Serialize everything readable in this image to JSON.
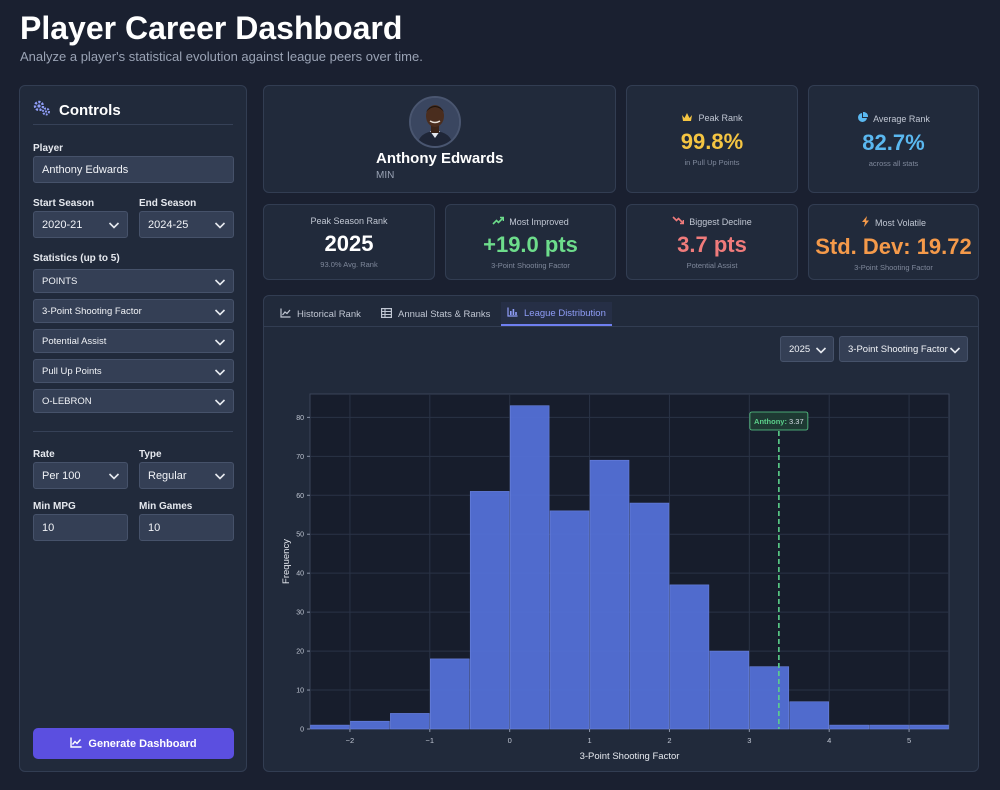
{
  "header": {
    "title": "Player Career Dashboard",
    "subtitle": "Analyze a player's statistical evolution against league peers over time."
  },
  "controls": {
    "title": "Controls",
    "player_label": "Player",
    "player_value": "Anthony Edwards",
    "start_season_label": "Start Season",
    "start_season_value": "2020-21",
    "end_season_label": "End Season",
    "end_season_value": "2024-25",
    "statistics_label": "Statistics (up to 5)",
    "statistics": [
      "POINTS",
      "3-Point Shooting Factor",
      "Potential Assist",
      "Pull Up Points",
      "O-LEBRON"
    ],
    "rate_label": "Rate",
    "rate_value": "Per 100",
    "type_label": "Type",
    "type_value": "Regular",
    "min_mpg_label": "Min MPG",
    "min_mpg_value": "10",
    "min_games_label": "Min Games",
    "min_games_value": "10",
    "generate_label": "Generate Dashboard"
  },
  "player": {
    "name": "Anthony Edwards",
    "team": "MIN"
  },
  "cards": {
    "peak_rank": {
      "title": "Peak Rank",
      "value": "99.8%",
      "sub": "in Pull Up Points"
    },
    "average_rank": {
      "title": "Average Rank",
      "value": "82.7%",
      "sub": "across all stats"
    },
    "peak_season": {
      "title": "Peak Season Rank",
      "value": "2025",
      "sub": "93.0% Avg. Rank"
    },
    "most_improved": {
      "title": "Most Improved",
      "value": "+19.0 pts",
      "sub": "3-Point Shooting Factor"
    },
    "biggest_decline": {
      "title": "Biggest Decline",
      "value": "3.7 pts",
      "sub": "Potential Assist"
    },
    "most_volatile": {
      "title": "Most Volatile",
      "value": "Std. Dev: 19.72",
      "sub": "3-Point Shooting Factor"
    }
  },
  "tabs": [
    "Historical Rank",
    "Annual Stats & Ranks",
    "League Distribution"
  ],
  "chart_controls": {
    "season": "2025",
    "stat": "3-Point Shooting Factor"
  },
  "colors": {
    "accent": "#5b4fe0",
    "gold": "#f5c542",
    "blue": "#5ab8f0",
    "green": "#6ddc8b",
    "red": "#f07b7b",
    "orange": "#f59a4a",
    "bar": "#5470d6",
    "marker": "#5bd08a"
  },
  "chart_data": {
    "type": "bar",
    "title": "",
    "xlabel": "3-Point Shooting Factor",
    "ylabel": "Frequency",
    "xlim": [
      -2.5,
      5.5
    ],
    "ylim": [
      0,
      86
    ],
    "bin_edges": [
      -2.5,
      -2.0,
      -1.5,
      -1.0,
      -0.5,
      0.0,
      0.5,
      1.0,
      1.5,
      2.0,
      2.5,
      3.0,
      3.5,
      4.0,
      4.5,
      5.0,
      5.5
    ],
    "values": [
      1,
      2,
      4,
      18,
      61,
      83,
      56,
      69,
      58,
      37,
      20,
      16,
      7,
      1,
      1,
      1
    ],
    "x_ticks": [
      -2,
      -1,
      0,
      1,
      2,
      3,
      4,
      5
    ],
    "x_tick_labels": [
      "−2",
      "−1",
      "0",
      "1",
      "2",
      "3",
      "4",
      "5"
    ],
    "y_ticks": [
      0,
      10,
      20,
      30,
      40,
      50,
      60,
      70,
      80
    ],
    "y_tick_labels": [
      "0",
      "10",
      "20",
      "30",
      "40",
      "50",
      "60",
      "70",
      "80"
    ],
    "grid": true,
    "marker": {
      "label": "Anthony",
      "value": 3.37,
      "value_label": "3.37"
    }
  }
}
